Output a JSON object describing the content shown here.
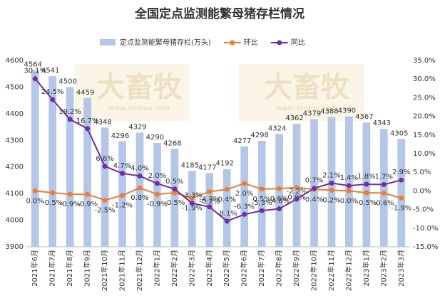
{
  "chart_data": {
    "type": "bar-line",
    "title": "全国定点监测能繁母猪存栏情况",
    "watermark": {
      "text": "大畜牧",
      "url": "www.dxumu.com"
    },
    "categories": [
      "2021年6月",
      "2021年7月",
      "2021年8月",
      "2021年9月",
      "2021年10月",
      "2021年11月",
      "2021年12月",
      "2022年1月",
      "2022年2月",
      "2022年3月",
      "2022年4月",
      "2022年5月",
      "2022年6月",
      "2022年7月",
      "2022年8月",
      "2022年9月",
      "2022年10月",
      "2022年11月",
      "2022年12月",
      "2023年1月",
      "2023年2月",
      "2023年3月"
    ],
    "series": [
      {
        "name": "定点监测能繁母猪存栏(万头)",
        "type": "bar",
        "color": "#b4c7e7",
        "values": [
          4564,
          4541,
          4500,
          4459,
          4348,
          4296,
          4329,
          4290,
          4268,
          4185,
          4177,
          4192,
          4277,
          4298,
          4324,
          4362,
          4379,
          4388,
          4390,
          4367,
          4343,
          4305
        ]
      },
      {
        "name": "环比",
        "type": "line",
        "axis": "y2",
        "color": "#ed7d31",
        "values": [
          0.0,
          -0.5,
          -0.9,
          -0.9,
          -2.5,
          -1.2,
          0.8,
          -0.9,
          -0.5,
          -1.9,
          -0.2,
          0.4,
          2.0,
          0.5,
          0.6,
          0.9,
          0.4,
          0.2,
          0.0,
          -0.5,
          -0.6,
          -1.9
        ],
        "value_labels": [
          "0.0%",
          "-0.5%",
          "-0.9%",
          "-0.9%",
          "-2.5%",
          "-1.2%",
          "0.8%",
          "-0.9%",
          "-0.5%",
          "-1.9%",
          "-0.2%",
          "0.4%",
          "2.0%",
          "0.5%",
          "0.6%",
          "0.9%",
          "0.4%",
          "0.2%",
          "0.0%",
          "-0.5%",
          "-0.6%",
          "-1.9%"
        ]
      },
      {
        "name": "同比",
        "type": "line",
        "axis": "y2",
        "color": "#7030a0",
        "values": [
          30.1,
          24.5,
          19.2,
          16.7,
          6.6,
          4.7,
          4.0,
          2.0,
          0.5,
          -3.3,
          -4.3,
          -8.1,
          -6.3,
          -5.3,
          -4.8,
          -2.2,
          0.7,
          2.1,
          1.4,
          1.8,
          1.7,
          2.9
        ],
        "value_labels": [
          "30.1%",
          "24.5%",
          "19.2%",
          "16.7%",
          "6.6%",
          "4.7%",
          "4.0%",
          "2.0%",
          "0.5%",
          "-3.3%",
          "-4.3%",
          "-8.1%",
          "-6.3%",
          "-5.3%",
          "-4.8%",
          "-2.2%",
          "0.7%",
          "2.1%",
          "1.4%",
          "1.8%",
          "1.7%",
          "2.9%"
        ]
      }
    ],
    "ylim": [
      3900,
      4600
    ],
    "yticks": [
      3900,
      4000,
      4100,
      4200,
      4300,
      4400,
      4500,
      4600
    ],
    "y2lim": [
      -15,
      35
    ],
    "y2ticks": [
      {
        "value": -15,
        "label": "-15.0%"
      },
      {
        "value": -10,
        "label": "-10.0%"
      },
      {
        "value": -5,
        "label": "-5.0%"
      },
      {
        "value": 0,
        "label": "0.0%"
      },
      {
        "value": 5,
        "label": "5.0%"
      },
      {
        "value": 10,
        "label": "10.0%"
      },
      {
        "value": 15,
        "label": "15.0%"
      },
      {
        "value": 20,
        "label": "20.0%"
      },
      {
        "value": 25,
        "label": "25.0%"
      },
      {
        "value": 30,
        "label": "30.0%"
      },
      {
        "value": 35,
        "label": "35.0%"
      }
    ],
    "legend": "top",
    "grid": false
  }
}
